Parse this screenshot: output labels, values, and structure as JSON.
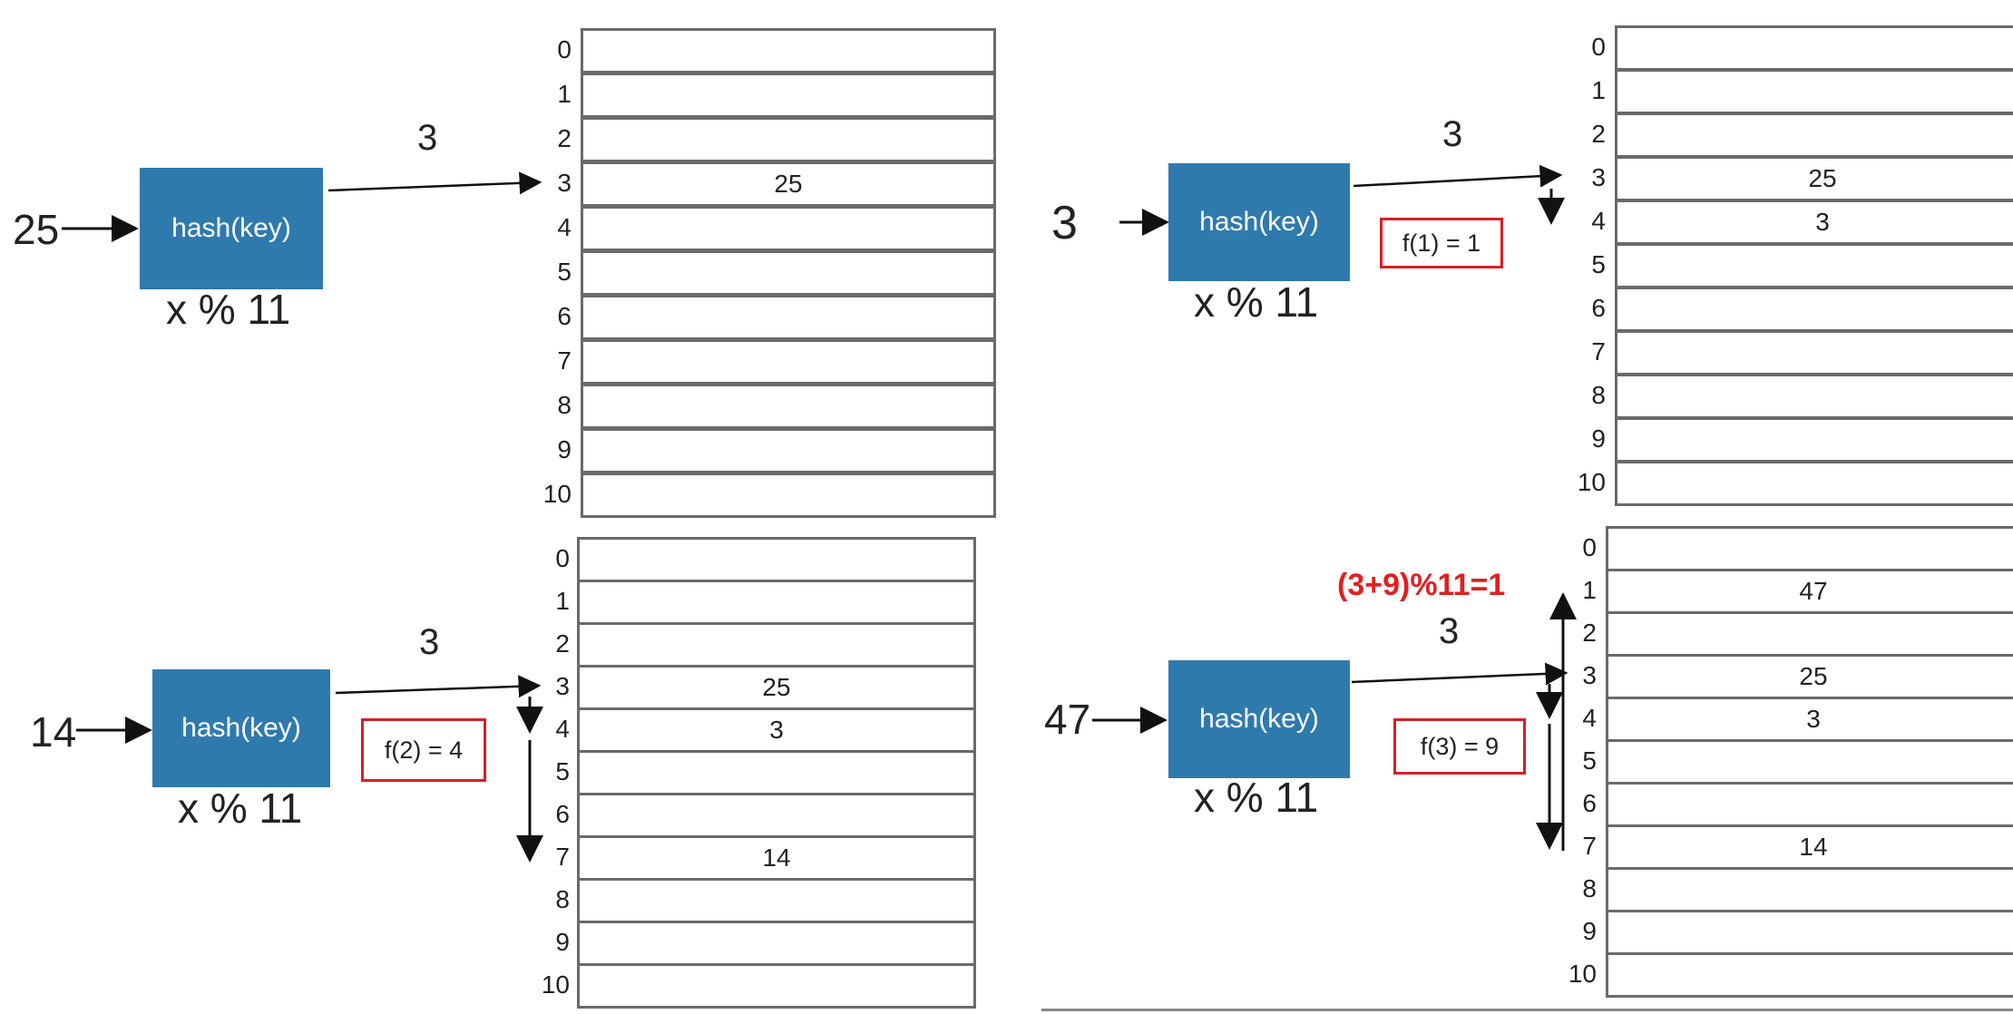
{
  "panels": [
    {
      "key": "25",
      "hash_label": "hash(key)",
      "formula": "x % 11",
      "hash_value": "3",
      "table": {
        "indices": [
          "0",
          "1",
          "2",
          "3",
          "4",
          "5",
          "6",
          "7",
          "8",
          "9",
          "10"
        ],
        "values": [
          "",
          "",
          "",
          "25",
          "",
          "",
          "",
          "",
          "",
          "",
          ""
        ]
      }
    },
    {
      "key": "3",
      "hash_label": "hash(key)",
      "formula": "x % 11",
      "hash_value": "3",
      "probe": "f(1) = 1",
      "table": {
        "indices": [
          "0",
          "1",
          "2",
          "3",
          "4",
          "5",
          "6",
          "7",
          "8",
          "9",
          "10"
        ],
        "values": [
          "",
          "",
          "",
          "25",
          "3",
          "",
          "",
          "",
          "",
          "",
          ""
        ]
      }
    },
    {
      "key": "14",
      "hash_label": "hash(key)",
      "formula": "x % 11",
      "hash_value": "3",
      "probe": "f(2) = 4",
      "table": {
        "indices": [
          "0",
          "1",
          "2",
          "3",
          "4",
          "5",
          "6",
          "7",
          "8",
          "9",
          "10"
        ],
        "values": [
          "",
          "",
          "",
          "25",
          "3",
          "",
          "",
          "14",
          "",
          "",
          ""
        ]
      }
    },
    {
      "key": "47",
      "hash_label": "hash(key)",
      "formula": "x % 11",
      "hash_value": "3",
      "probe": "f(3) = 9",
      "wrap_note": "(3+9)%11=1",
      "table": {
        "indices": [
          "0",
          "1",
          "2",
          "3",
          "4",
          "5",
          "6",
          "7",
          "8",
          "9",
          "10"
        ],
        "values": [
          "",
          "47",
          "",
          "25",
          "3",
          "",
          "",
          "14",
          "",
          "",
          ""
        ]
      }
    }
  ],
  "colors": {
    "hash_box": "#2f7aad",
    "highlight_red": "#d91e26"
  }
}
